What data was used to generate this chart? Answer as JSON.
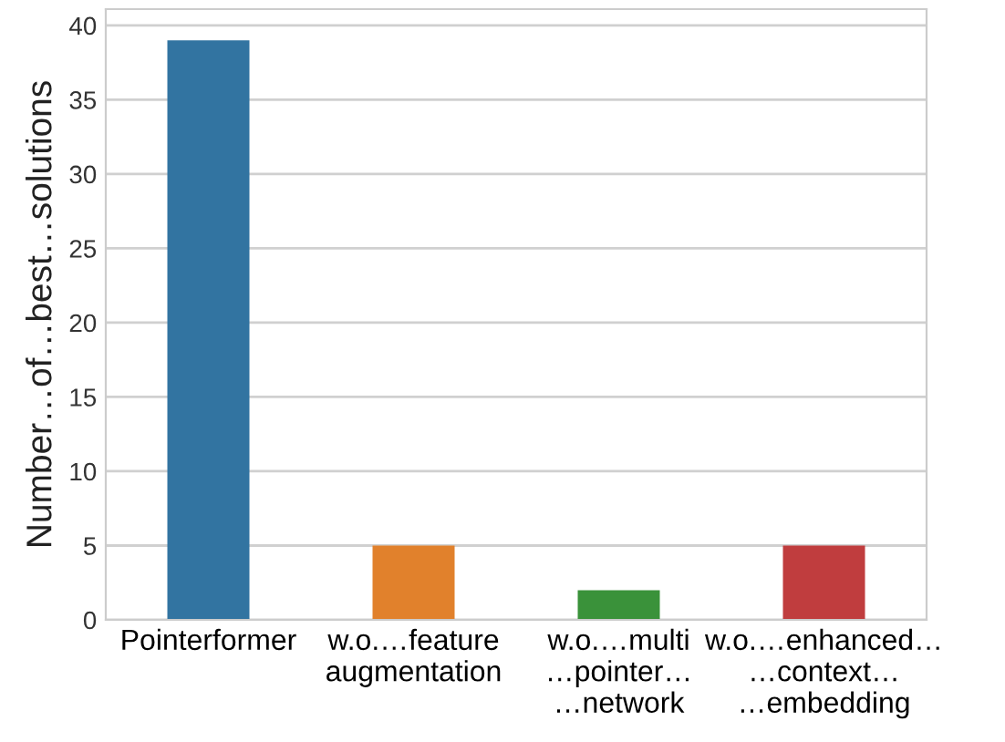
{
  "chart_data": {
    "type": "bar",
    "ylabel": "Number…of…best…solutions",
    "categories": [
      "Pointerformer",
      "w.o.…feature\naugmentation",
      "w.o.…multi\n…pointer…\n…network",
      "w.o.…enhanced…\n…context…\n…embedding"
    ],
    "values": [
      39,
      5,
      2,
      5
    ],
    "colors": [
      "#3274a1",
      "#e1812c",
      "#3a923a",
      "#c03d3e"
    ],
    "ylim": [
      0,
      41.1
    ],
    "yticks": [
      0,
      5,
      10,
      15,
      20,
      25,
      30,
      35,
      40
    ],
    "grid": "y"
  }
}
